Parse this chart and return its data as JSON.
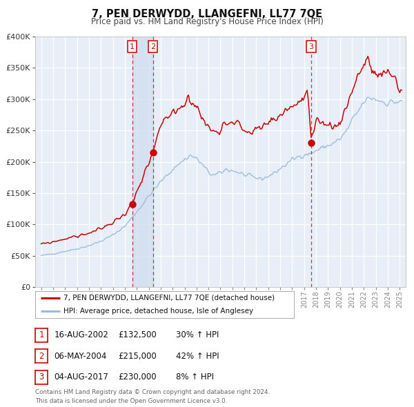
{
  "title": "7, PEN DERWYDD, LLANGEFNI, LL77 7QE",
  "subtitle": "Price paid vs. HM Land Registry's House Price Index (HPI)",
  "legend_property": "7, PEN DERWYDD, LLANGEFNI, LL77 7QE (detached house)",
  "legend_hpi": "HPI: Average price, detached house, Isle of Anglesey",
  "footer_line1": "Contains HM Land Registry data © Crown copyright and database right 2024.",
  "footer_line2": "This data is licensed under the Open Government Licence v3.0.",
  "transactions": [
    {
      "num": 1,
      "date": "16-AUG-2002",
      "date_x": 2002.62,
      "price": 132500,
      "label": "£132,500",
      "pct": "30% ↑ HPI"
    },
    {
      "num": 2,
      "date": "06-MAY-2004",
      "date_x": 2004.35,
      "price": 215000,
      "label": "£215,000",
      "pct": "42% ↑ HPI"
    },
    {
      "num": 3,
      "date": "04-AUG-2017",
      "date_x": 2017.59,
      "price": 230000,
      "label": "£230,000",
      "pct": "8% ↑ HPI"
    }
  ],
  "ylim": [
    0,
    400000
  ],
  "xlim": [
    1994.5,
    2025.5
  ],
  "yticks": [
    0,
    50000,
    100000,
    150000,
    200000,
    250000,
    300000,
    350000,
    400000
  ],
  "xticks": [
    1995,
    1996,
    1997,
    1998,
    1999,
    2000,
    2001,
    2002,
    2003,
    2004,
    2005,
    2006,
    2007,
    2008,
    2009,
    2010,
    2011,
    2012,
    2013,
    2014,
    2015,
    2016,
    2017,
    2018,
    2019,
    2020,
    2021,
    2022,
    2023,
    2024,
    2025
  ],
  "bg_color": "#e8eef8",
  "grid_color": "#ffffff",
  "line_color_property": "#cc0000",
  "line_color_hpi": "#99bbdd",
  "dot_color": "#cc0000",
  "dashed_line_color": "#cc3333",
  "shade_color": "#ccd9ed"
}
